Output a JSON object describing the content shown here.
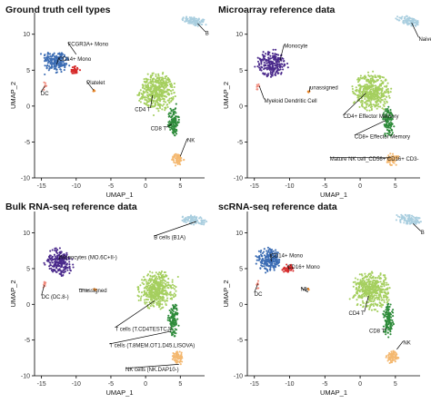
{
  "figure": {
    "panels": [
      {
        "id": "ground-truth",
        "title": "Ground truth cell types",
        "xlabel": "UMAP_1",
        "ylabel": "UMAP_2",
        "annotations": [
          {
            "text": "B",
            "pt": [
              7.5,
              11.5
            ],
            "lab": [
              8.6,
              10.1
            ],
            "anchor": "start"
          },
          {
            "text": "FCGR3A+ Mono",
            "pt": [
              -10.0,
              7.2
            ],
            "lab": [
              -11.2,
              8.6
            ],
            "anchor": "start"
          },
          {
            "text": "CD14+ Mono",
            "pt": [
              -12.8,
              5.8
            ],
            "lab": [
              -12.5,
              6.5
            ],
            "anchor": "start"
          },
          {
            "text": "Platelet",
            "pt": [
              -7.5,
              2.2
            ],
            "lab": [
              -8.5,
              3.2
            ],
            "anchor": "start"
          },
          {
            "text": "DC",
            "pt": [
              -14.5,
              2.8
            ],
            "lab": [
              -15.1,
              1.7
            ],
            "anchor": "start"
          },
          {
            "text": "CD4 T",
            "pt": [
              1.0,
              1.5
            ],
            "lab": [
              0.7,
              -0.5
            ],
            "anchor": "end"
          },
          {
            "text": "CD8 T",
            "pt": [
              3.8,
              -2.5
            ],
            "lab": [
              3.0,
              -3.2
            ],
            "anchor": "end"
          },
          {
            "text": "NK",
            "pt": [
              5.0,
              -7.0
            ],
            "lab": [
              6.0,
              -4.8
            ],
            "anchor": "start"
          }
        ]
      },
      {
        "id": "microarray",
        "title": "Microarray reference data",
        "xlabel": "UMAP_1",
        "ylabel": "UMAP_2",
        "annotations": [
          {
            "text": "Naive B-cells",
            "pt": [
              7.3,
              11.6
            ],
            "lab": [
              8.3,
              9.3
            ],
            "anchor": "start"
          },
          {
            "text": "Monocyte",
            "pt": [
              -11.4,
              6.2
            ],
            "lab": [
              -10.8,
              8.3
            ],
            "anchor": "start"
          },
          {
            "text": "unassigned",
            "pt": [
              -7.2,
              2.0
            ],
            "lab": [
              -7.1,
              2.5
            ],
            "anchor": "start"
          },
          {
            "text": "Myeloid Dendritic Cell",
            "pt": [
              -14.3,
              2.8
            ],
            "lab": [
              -13.6,
              0.7
            ],
            "anchor": "start"
          },
          {
            "text": "CD4+ Effector Memory",
            "pt": [
              0.8,
              1.8
            ],
            "lab": [
              -2.4,
              -1.5
            ],
            "anchor": "start"
          },
          {
            "text": "CD8+ Effector Memory",
            "pt": [
              3.6,
              -2.0
            ],
            "lab": [
              -0.8,
              -4.3
            ],
            "anchor": "start"
          },
          {
            "text": "Mature NK cell_CD56+ CD16+ CD3-",
            "pt": [
              4.3,
              -7.2
            ],
            "lab": [
              -4.3,
              -7.4
            ],
            "anchor": "start"
          }
        ]
      },
      {
        "id": "bulk-rnaseq",
        "title": "Bulk RNA-seq reference data",
        "xlabel": "UMAP_1",
        "ylabel": "UMAP_2",
        "annotations": [
          {
            "text": "B cells (B1A)",
            "pt": [
              7.3,
              11.6
            ],
            "lab": [
              1.2,
              9.3
            ],
            "anchor": "start"
          },
          {
            "text": "Monocytes (MO.6C+II-)",
            "pt": [
              -12.5,
              6.2
            ],
            "lab": [
              -12.3,
              6.5
            ],
            "anchor": "start"
          },
          {
            "text": "unassigned",
            "pt": [
              -8.1,
              2.0
            ],
            "lab": [
              -9.6,
              1.9
            ],
            "anchor": "start"
          },
          {
            "text": "DC (DC.8-)",
            "pt": [
              -14.6,
              2.7
            ],
            "lab": [
              -15.0,
              1.0
            ],
            "anchor": "start"
          },
          {
            "text": "T cells (T.CD4TESTCJ)",
            "pt": [
              1.3,
              0.5
            ],
            "lab": [
              -4.4,
              -3.5
            ],
            "anchor": "start"
          },
          {
            "text": "T cells (T.8MEM.OT1.D45.LISOVA)",
            "pt": [
              3.5,
              -3.8
            ],
            "lab": [
              -5.2,
              -5.8
            ],
            "anchor": "start"
          },
          {
            "text": "NK cells (NK.DAP10-)",
            "pt": [
              4.8,
              -8.4
            ],
            "lab": [
              -2.9,
              -9.2
            ],
            "anchor": "start"
          }
        ]
      },
      {
        "id": "scrnaseq",
        "title": "scRNA-seq reference data",
        "xlabel": "UMAP_1",
        "ylabel": "UMAP_2",
        "annotations": [
          {
            "text": "B",
            "pt": [
              7.5,
              11.3
            ],
            "lab": [
              8.6,
              10.0
            ],
            "anchor": "start"
          },
          {
            "text": "CD14+ Mono",
            "pt": [
              -12.6,
              6.0
            ],
            "lab": [
              -12.7,
              6.8
            ],
            "anchor": "start"
          },
          {
            "text": "CD16+ Mono",
            "pt": [
              -10.0,
              4.8
            ],
            "lab": [
              -10.3,
              5.2
            ],
            "anchor": "start"
          },
          {
            "text": "Mk",
            "pt": [
              -7.4,
              1.7
            ],
            "lab": [
              -8.4,
              2.1
            ],
            "anchor": "start"
          },
          {
            "text": "DC",
            "pt": [
              -14.5,
              2.9
            ],
            "lab": [
              -15.0,
              1.4
            ],
            "anchor": "start"
          },
          {
            "text": "CD4 T",
            "pt": [
              1.2,
              1.2
            ],
            "lab": [
              0.6,
              -1.3
            ],
            "anchor": "end"
          },
          {
            "text": "CD8 T",
            "pt": [
              3.7,
              -3.3
            ],
            "lab": [
              3.5,
              -3.8
            ],
            "anchor": "end"
          },
          {
            "text": "NK",
            "pt": [
              5.2,
              -6.3
            ],
            "lab": [
              6.1,
              -5.4
            ],
            "anchor": "start"
          }
        ]
      }
    ]
  },
  "chart_data": [
    {
      "type": "scatter",
      "title": "Ground truth cell types",
      "xlabel": "UMAP_1",
      "ylabel": "UMAP_2",
      "xlim": [
        -16,
        8.5
      ],
      "ylim": [
        -10,
        13
      ],
      "xticks": [
        -15,
        -10,
        -5,
        0,
        5
      ],
      "yticks": [
        -10,
        -5,
        0,
        5,
        10
      ],
      "grid": false,
      "legend": "none",
      "series": [
        {
          "name": "B",
          "color": "#a9cedf",
          "clusters": [
            {
              "cx": 7.0,
              "cy": 11.8,
              "rx": 2.0,
              "ry": 0.7,
              "n": 90,
              "rot": -10
            }
          ]
        },
        {
          "name": "CD14+ Mono",
          "color": "#3c6db4",
          "clusters": [
            {
              "cx": -12.9,
              "cy": 6.2,
              "rx": 1.9,
              "ry": 1.7,
              "n": 200,
              "rot": -20
            }
          ]
        },
        {
          "name": "FCGR3A+ Mono",
          "color": "#d62a2a",
          "clusters": [
            {
              "cx": -10.2,
              "cy": 5.0,
              "rx": 0.8,
              "ry": 0.6,
              "n": 35,
              "rot": 0
            }
          ]
        },
        {
          "name": "DC",
          "color": "#f08a7c",
          "clusters": [
            {
              "cx": -14.5,
              "cy": 2.8,
              "rx": 0.3,
              "ry": 0.6,
              "n": 8,
              "rot": 0
            }
          ]
        },
        {
          "name": "Platelet",
          "color": "#e8862a",
          "clusters": [
            {
              "cx": -7.3,
              "cy": 2.1,
              "rx": 0.25,
              "ry": 0.2,
              "n": 4,
              "rot": 0
            }
          ]
        },
        {
          "name": "CD4 T",
          "color": "#a5cf5f",
          "clusters": [
            {
              "cx": 1.6,
              "cy": 2.0,
              "rx": 2.7,
              "ry": 2.7,
              "n": 450,
              "rot": 0
            }
          ]
        },
        {
          "name": "CD8 T",
          "color": "#2e8b3a",
          "clusters": [
            {
              "cx": 4.0,
              "cy": -2.2,
              "rx": 0.8,
              "ry": 2.3,
              "n": 120,
              "rot": 0
            }
          ]
        },
        {
          "name": "NK",
          "color": "#f4b870",
          "clusters": [
            {
              "cx": 4.6,
              "cy": -7.4,
              "rx": 0.9,
              "ry": 0.9,
              "n": 70,
              "rot": 0
            }
          ]
        }
      ]
    },
    {
      "type": "scatter",
      "title": "Microarray reference data",
      "xlabel": "UMAP_1",
      "ylabel": "UMAP_2",
      "xlim": [
        -16,
        8.5
      ],
      "ylim": [
        -10,
        13
      ],
      "xticks": [
        -15,
        -10,
        -5,
        0,
        5
      ],
      "yticks": [
        -10,
        -5,
        0,
        5,
        10
      ],
      "grid": false,
      "legend": "none",
      "series": [
        {
          "name": "Naive B-cells",
          "color": "#a9cedf",
          "clusters": [
            {
              "cx": 7.0,
              "cy": 11.8,
              "rx": 2.0,
              "ry": 0.7,
              "n": 90,
              "rot": -10
            }
          ]
        },
        {
          "name": "Monocyte",
          "color": "#4b2a8c",
          "clusters": [
            {
              "cx": -12.4,
              "cy": 5.9,
              "rx": 2.2,
              "ry": 1.9,
              "n": 230,
              "rot": -20
            }
          ]
        },
        {
          "name": "Myeloid Dendritic Cell",
          "color": "#f08a7c",
          "clusters": [
            {
              "cx": -14.5,
              "cy": 2.8,
              "rx": 0.3,
              "ry": 0.6,
              "n": 8,
              "rot": 0
            }
          ]
        },
        {
          "name": "unassigned",
          "color": "#e8862a",
          "clusters": [
            {
              "cx": -7.3,
              "cy": 2.1,
              "rx": 0.25,
              "ry": 0.2,
              "n": 4,
              "rot": 0
            }
          ]
        },
        {
          "name": "CD4+ Effector Memory",
          "color": "#a5cf5f",
          "clusters": [
            {
              "cx": 1.6,
              "cy": 2.0,
              "rx": 2.7,
              "ry": 2.7,
              "n": 450,
              "rot": 0
            }
          ]
        },
        {
          "name": "CD8+ Effector Memory",
          "color": "#2e8b3a",
          "clusters": [
            {
              "cx": 4.0,
              "cy": -2.2,
              "rx": 0.8,
              "ry": 2.3,
              "n": 120,
              "rot": 0
            }
          ]
        },
        {
          "name": "Mature NK cell_CD56+ CD16+ CD3-",
          "color": "#f4b870",
          "clusters": [
            {
              "cx": 4.6,
              "cy": -7.4,
              "rx": 0.9,
              "ry": 0.9,
              "n": 70,
              "rot": 0
            }
          ]
        }
      ]
    },
    {
      "type": "scatter",
      "title": "Bulk RNA-seq reference data",
      "xlabel": "UMAP_1",
      "ylabel": "UMAP_2",
      "xlim": [
        -16,
        8.5
      ],
      "ylim": [
        -10,
        13
      ],
      "xticks": [
        -15,
        -10,
        -5,
        0,
        5
      ],
      "yticks": [
        -10,
        -5,
        0,
        5,
        10
      ],
      "grid": false,
      "legend": "none",
      "series": [
        {
          "name": "B cells (B1A)",
          "color": "#a9cedf",
          "clusters": [
            {
              "cx": 7.0,
              "cy": 11.8,
              "rx": 2.0,
              "ry": 0.7,
              "n": 90,
              "rot": -10
            }
          ]
        },
        {
          "name": "Monocytes (MO.6C+II-)",
          "color": "#4b2a8c",
          "clusters": [
            {
              "cx": -12.4,
              "cy": 5.9,
              "rx": 2.2,
              "ry": 1.9,
              "n": 230,
              "rot": -20
            }
          ]
        },
        {
          "name": "DC (DC.8-)",
          "color": "#f08a7c",
          "clusters": [
            {
              "cx": -14.5,
              "cy": 2.8,
              "rx": 0.3,
              "ry": 0.6,
              "n": 8,
              "rot": 0
            }
          ]
        },
        {
          "name": "unassigned",
          "color": "#e8862a",
          "clusters": [
            {
              "cx": -7.3,
              "cy": 2.1,
              "rx": 0.25,
              "ry": 0.2,
              "n": 4,
              "rot": 0
            }
          ]
        },
        {
          "name": "T cells (T.CD4TESTCJ)",
          "color": "#a5cf5f",
          "clusters": [
            {
              "cx": 1.6,
              "cy": 2.0,
              "rx": 2.7,
              "ry": 2.7,
              "n": 450,
              "rot": 0
            }
          ]
        },
        {
          "name": "T cells (T.8MEM.OT1.D45.LISOVA)",
          "color": "#2e8b3a",
          "clusters": [
            {
              "cx": 4.0,
              "cy": -2.2,
              "rx": 0.8,
              "ry": 2.3,
              "n": 120,
              "rot": 0
            }
          ]
        },
        {
          "name": "NK cells (NK.DAP10-)",
          "color": "#f4b870",
          "clusters": [
            {
              "cx": 4.6,
              "cy": -7.4,
              "rx": 0.9,
              "ry": 0.9,
              "n": 70,
              "rot": 0
            }
          ]
        }
      ]
    },
    {
      "type": "scatter",
      "title": "scRNA-seq reference data",
      "xlabel": "UMAP_1",
      "ylabel": "UMAP_2",
      "xlim": [
        -16,
        8.5
      ],
      "ylim": [
        -10,
        13
      ],
      "xticks": [
        -15,
        -10,
        -5,
        0,
        5
      ],
      "yticks": [
        -10,
        -5,
        0,
        5,
        10
      ],
      "grid": false,
      "legend": "none",
      "series": [
        {
          "name": "B",
          "color": "#a9cedf",
          "clusters": [
            {
              "cx": 7.0,
              "cy": 11.8,
              "rx": 2.0,
              "ry": 0.7,
              "n": 90,
              "rot": -10
            }
          ]
        },
        {
          "name": "CD14+ Mono",
          "color": "#3c6db4",
          "clusters": [
            {
              "cx": -12.9,
              "cy": 6.2,
              "rx": 1.9,
              "ry": 1.7,
              "n": 200,
              "rot": -20
            }
          ]
        },
        {
          "name": "CD16+ Mono",
          "color": "#d62a2a",
          "clusters": [
            {
              "cx": -10.2,
              "cy": 5.0,
              "rx": 0.8,
              "ry": 0.6,
              "n": 35,
              "rot": 0
            }
          ]
        },
        {
          "name": "DC",
          "color": "#f08a7c",
          "clusters": [
            {
              "cx": -14.5,
              "cy": 2.8,
              "rx": 0.3,
              "ry": 0.6,
              "n": 8,
              "rot": 0
            }
          ]
        },
        {
          "name": "Mk",
          "color": "#e8862a",
          "clusters": [
            {
              "cx": -7.3,
              "cy": 2.1,
              "rx": 0.25,
              "ry": 0.2,
              "n": 4,
              "rot": 0
            }
          ]
        },
        {
          "name": "CD4 T",
          "color": "#a5cf5f",
          "clusters": [
            {
              "cx": 1.6,
              "cy": 2.0,
              "rx": 2.7,
              "ry": 2.7,
              "n": 450,
              "rot": 0
            }
          ]
        },
        {
          "name": "CD8 T",
          "color": "#2e8b3a",
          "clusters": [
            {
              "cx": 4.0,
              "cy": -2.2,
              "rx": 0.8,
              "ry": 2.3,
              "n": 120,
              "rot": 0
            }
          ]
        },
        {
          "name": "NK",
          "color": "#f4b870",
          "clusters": [
            {
              "cx": 4.6,
              "cy": -7.4,
              "rx": 0.9,
              "ry": 0.9,
              "n": 70,
              "rot": 0
            }
          ]
        }
      ]
    }
  ]
}
